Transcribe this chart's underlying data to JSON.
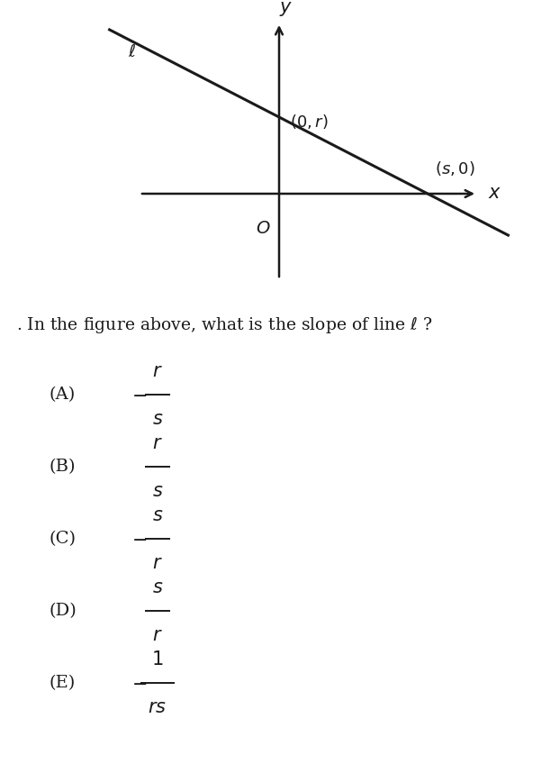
{
  "bg_color": "#ffffff",
  "fig_width": 6.22,
  "fig_height": 8.48,
  "dpi": 100,
  "question_text": ". In the figure above, what is the slope of line $\\ell$ ?",
  "question_fontsize": 13.5,
  "choices": [
    {
      "label": "(A)",
      "neg": true,
      "num": "r",
      "den": "s"
    },
    {
      "label": "(B)",
      "neg": false,
      "num": "r",
      "den": "s"
    },
    {
      "label": "(C)",
      "neg": true,
      "num": "s",
      "den": "r"
    },
    {
      "label": "(D)",
      "neg": false,
      "num": "s",
      "den": "r"
    },
    {
      "label": "(E)",
      "neg": true,
      "num": "1",
      "den": "rs"
    }
  ],
  "line_color": "#1a1a1a"
}
